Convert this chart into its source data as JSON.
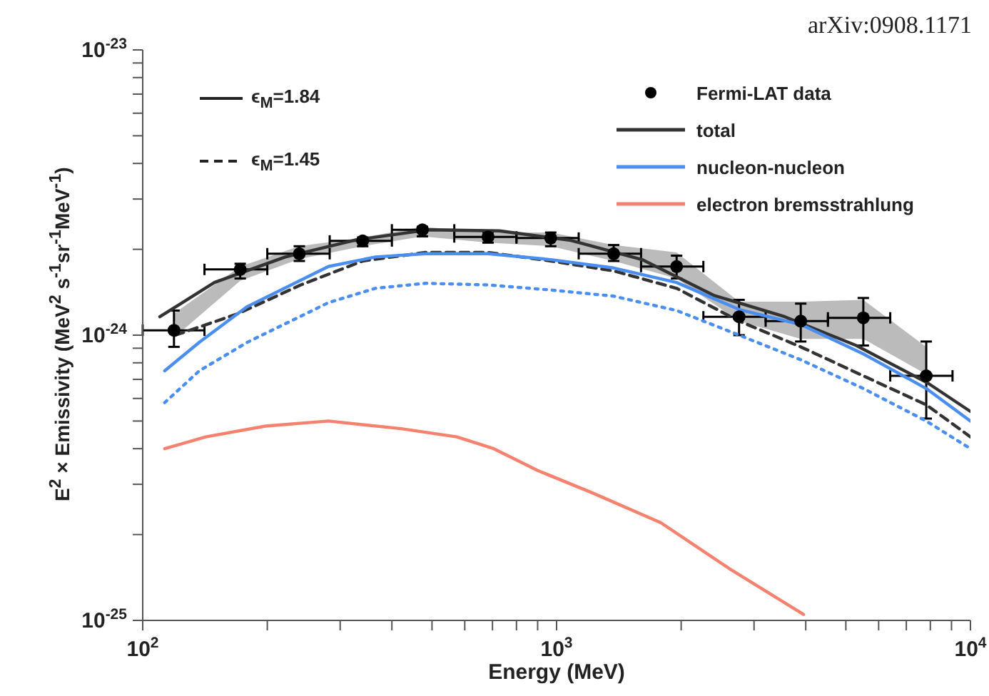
{
  "chart_data": {
    "type": "line",
    "xlabel": "Energy (MeV)",
    "ylabel": "E$^{2}$ × Emissivity (MeV$^{2}$ s$^{-1}$sr$^{-1}$MeV$^{-1}$)",
    "annotations": [
      "arXiv:0908.1171",
      "ϵ$_{M}$=1.84",
      "ϵ$_{M}$=1.45"
    ],
    "log": "xy",
    "xlim": [
      100,
      10000
    ],
    "xticks": [
      {
        "value": 100,
        "label": "10$^{2}$"
      },
      {
        "value": 200,
        "label": null
      },
      {
        "value": 300,
        "label": null
      },
      {
        "value": 400,
        "label": null
      },
      {
        "value": 500,
        "label": null
      },
      {
        "value": 600,
        "label": null
      },
      {
        "value": 700,
        "label": null
      },
      {
        "value": 800,
        "label": null
      },
      {
        "value": 900,
        "label": null
      },
      {
        "value": 1000,
        "label": "10$^{3}$"
      },
      {
        "value": 2000,
        "label": null
      },
      {
        "value": 3000,
        "label": null
      },
      {
        "value": 4000,
        "label": null
      },
      {
        "value": 5000,
        "label": null
      },
      {
        "value": 6000,
        "label": null
      },
      {
        "value": 7000,
        "label": null
      },
      {
        "value": 8000,
        "label": null
      },
      {
        "value": 9000,
        "label": null
      },
      {
        "value": 10000,
        "label": "10$^{4}$"
      }
    ],
    "ylim": [
      1e-25,
      1e-23
    ],
    "yticks": [
      {
        "value": 1e-25,
        "label": "10$^{-25}$"
      },
      {
        "value": 2e-25,
        "label": null
      },
      {
        "value": 3e-25,
        "label": null
      },
      {
        "value": 4e-25,
        "label": null
      },
      {
        "value": 5e-25,
        "label": null
      },
      {
        "value": 6e-25,
        "label": null
      },
      {
        "value": 7e-25,
        "label": null
      },
      {
        "value": 8e-25,
        "label": null
      },
      {
        "value": 9e-25,
        "label": null
      },
      {
        "value": 1e-24,
        "label": "10$^{-24}$"
      },
      {
        "value": 2e-24,
        "label": null
      },
      {
        "value": 3e-24,
        "label": null
      },
      {
        "value": 4e-24,
        "label": null
      },
      {
        "value": 5e-24,
        "label": null
      },
      {
        "value": 6e-24,
        "label": null
      },
      {
        "value": 7e-24,
        "label": null
      },
      {
        "value": 8e-24,
        "label": null
      },
      {
        "value": 9e-24,
        "label": null
      },
      {
        "value": 1e-23,
        "label": "10$^{-23}$"
      }
    ],
    "legend": "top right",
    "series": [
      {
        "type": "scatter",
        "name": "Fermi-LAT data",
        "color": "#000000",
        "marker": "circle",
        "x": [
          119,
          172,
          239,
          340,
          474,
          683,
          968,
          1374,
          1950,
          2760,
          3890,
          5510,
          7820
        ],
        "values": [
          1.04e-24,
          1.7e-24,
          1.93e-24,
          2.14e-24,
          2.34e-24,
          2.21e-24,
          2.19e-24,
          1.93e-24,
          1.74e-24,
          1.16e-24,
          1.12e-24,
          1.15e-24,
          7.2e-25
        ],
        "errors": [
          [
            9.1e-25,
            1.22e-24
          ],
          [
            1.58e-24,
            1.78e-24
          ],
          [
            1.82e-24,
            2.05e-24
          ],
          [
            2.05e-24,
            2.2e-24
          ],
          [
            2.22e-24,
            2.4e-24
          ],
          [
            2.11e-24,
            2.29e-24
          ],
          [
            2.05e-24,
            2.29e-24
          ],
          [
            1.82e-24,
            2.07e-24
          ],
          [
            1.58e-24,
            1.9e-24
          ],
          [
            1e-24,
            1.33e-24
          ],
          [
            9.5e-25,
            1.29e-24
          ],
          [
            9.2e-25,
            1.35e-24
          ],
          [
            5.1e-25,
            9.5e-25
          ]
        ],
        "xerrors": [
          [
            100,
            141
          ],
          [
            141,
            200
          ],
          [
            200,
            283
          ],
          [
            283,
            400
          ],
          [
            400,
            566
          ],
          [
            566,
            800
          ],
          [
            800,
            1131
          ],
          [
            1131,
            1600
          ],
          [
            1600,
            2263
          ],
          [
            2263,
            3200
          ],
          [
            3200,
            4525
          ],
          [
            4525,
            6400
          ],
          [
            6400,
            9051
          ]
        ],
        "lower": [
          9.8e-25,
          1.55e-24,
          1.85e-24,
          2.05e-24,
          2.22e-24,
          2.11e-24,
          2.05e-24,
          1.82e-24,
          1.58e-24,
          1.12e-24,
          9.7e-25,
          9.7e-25,
          7.3e-25
        ],
        "upper": [
          1.19e-24,
          1.74e-24,
          2.05e-24,
          2.2e-24,
          2.4e-24,
          2.29e-24,
          2.29e-24,
          2.07e-24,
          1.95e-24,
          1.31e-24,
          1.31e-24,
          1.33e-24,
          9.1e-25
        ]
      },
      {
        "name": "total",
        "color": "#333333",
        "line_style": "solid",
        "marker": "none",
        "x": [
          110,
          149,
          221,
          329,
          489,
          728,
          1083,
          1610,
          2395,
          3562,
          5298,
          7880,
          10000
        ],
        "values": [
          1.16e-24,
          1.53e-24,
          1.88e-24,
          2.16e-24,
          2.34e-24,
          2.32e-24,
          2.15e-24,
          1.84e-24,
          1.38e-24,
          1.16e-24,
          9.2e-25,
          6.8e-25,
          5.4e-25
        ]
      },
      {
        "color": "#333333",
        "line_style": "dashed",
        "marker": "none",
        "x": [
          120,
          170,
          241,
          340,
          482,
          683,
          969,
          1374,
          1950,
          2762,
          3890,
          5510,
          7820,
          10000
        ],
        "values": [
          1e-24,
          1.19e-24,
          1.5e-24,
          1.82e-24,
          1.95e-24,
          1.95e-24,
          1.82e-24,
          1.68e-24,
          1.46e-24,
          1.12e-24,
          9.1e-25,
          7.2e-25,
          5.7e-25,
          4.4e-25
        ]
      },
      {
        "name": "nucleon-nucleon",
        "color": "#4a8ef0",
        "line_style": "solid",
        "marker": "none",
        "x": [
          113,
          137,
          179,
          281,
          365,
          482,
          683,
          969,
          1374,
          1950,
          2762,
          3890,
          5510,
          7820,
          10000
        ],
        "values": [
          7.5e-25,
          9.44e-25,
          1.26e-24,
          1.74e-24,
          1.88e-24,
          1.93e-24,
          1.93e-24,
          1.84e-24,
          1.72e-24,
          1.53e-24,
          1.23e-24,
          1.09e-24,
          8.6e-25,
          6.5e-25,
          5e-25
        ]
      },
      {
        "color": "#4a8ef0",
        "line_style": "dotted",
        "marker": "none",
        "x": [
          113,
          137,
          179,
          281,
          365,
          482,
          683,
          969,
          1374,
          1950,
          2762,
          3890,
          5510,
          7820,
          10000
        ],
        "values": [
          5.8e-25,
          7.5e-25,
          9.44e-25,
          1.3e-24,
          1.46e-24,
          1.52e-24,
          1.5e-24,
          1.44e-24,
          1.37e-24,
          1.22e-24,
          1e-24,
          8.2e-25,
          6.5e-25,
          5e-25,
          4e-25
        ]
      },
      {
        "name": "electron bremsstrahlung",
        "color": "#f4826e",
        "line_style": "solid",
        "marker": "none",
        "x": [
          113,
          142,
          198,
          281,
          421,
          574,
          705,
          902,
          1220,
          1786,
          2614,
          3952
        ],
        "values": [
          4e-25,
          4.4e-25,
          4.8e-25,
          5e-25,
          4.7e-25,
          4.4e-25,
          4e-25,
          3.35e-25,
          2.8e-25,
          2.2e-25,
          1.52e-25,
          1.05e-25
        ]
      }
    ]
  }
}
